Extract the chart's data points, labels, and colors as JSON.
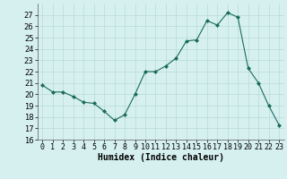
{
  "x": [
    0,
    1,
    2,
    3,
    4,
    5,
    6,
    7,
    8,
    9,
    10,
    11,
    12,
    13,
    14,
    15,
    16,
    17,
    18,
    19,
    20,
    21,
    22,
    23
  ],
  "y": [
    20.8,
    20.2,
    20.2,
    19.8,
    19.3,
    19.2,
    18.5,
    17.7,
    18.2,
    20.0,
    22.0,
    22.0,
    22.5,
    23.2,
    24.7,
    24.8,
    26.5,
    26.1,
    27.2,
    26.8,
    22.3,
    21.0,
    19.0,
    17.3
  ],
  "xlabel": "Humidex (Indice chaleur)",
  "ylim": [
    16,
    28
  ],
  "yticks": [
    16,
    17,
    18,
    19,
    20,
    21,
    22,
    23,
    24,
    25,
    26,
    27
  ],
  "xticks": [
    0,
    1,
    2,
    3,
    4,
    5,
    6,
    7,
    8,
    9,
    10,
    11,
    12,
    13,
    14,
    15,
    16,
    17,
    18,
    19,
    20,
    21,
    22,
    23
  ],
  "xtick_labels": [
    "0",
    "1",
    "2",
    "3",
    "4",
    "5",
    "6",
    "7",
    "8",
    "9",
    "10",
    "11",
    "12",
    "13",
    "14",
    "15",
    "16",
    "17",
    "18",
    "19",
    "20",
    "21",
    "22",
    "23"
  ],
  "line_color": "#1a6b5a",
  "marker_color": "#1a6b5a",
  "bg_color": "#d6f0f0",
  "grid_color": "#b8dada",
  "xlabel_fontsize": 7,
  "tick_fontsize": 6
}
